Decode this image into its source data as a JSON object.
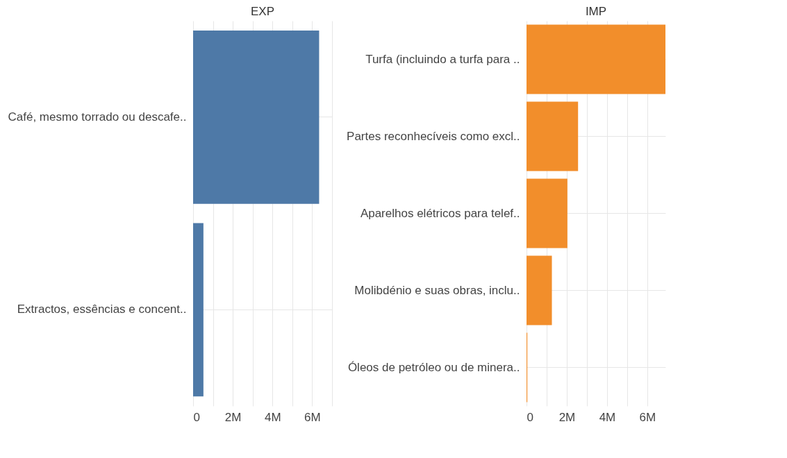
{
  "chart_data": [
    {
      "type": "bar",
      "orientation": "horizontal",
      "title": "EXP",
      "categories": [
        "Café, mesmo torrado ou descafe..",
        "Extractos, essências e concent.."
      ],
      "values": [
        6350000,
        520000
      ],
      "color": "#4e79a7",
      "xlim": [
        0,
        7000000
      ],
      "xticks": [
        {
          "value": 0,
          "label": "0"
        },
        {
          "value": 1000000,
          "label": null
        },
        {
          "value": 2000000,
          "label": "2M"
        },
        {
          "value": 3000000,
          "label": null
        },
        {
          "value": 4000000,
          "label": "4M"
        },
        {
          "value": 5000000,
          "label": null
        },
        {
          "value": 6000000,
          "label": "6M"
        },
        {
          "value": 7000000,
          "label": null
        }
      ],
      "grid": true
    },
    {
      "type": "bar",
      "orientation": "horizontal",
      "title": "IMP",
      "categories": [
        "Turfa (incluindo a turfa para ..",
        "Partes reconhecíveis como excl..",
        "Aparelhos elétricos para telef..",
        "Molibdénio e suas obras, inclu..",
        "Óleos de petróleo ou de minera.."
      ],
      "values": [
        6900000,
        2560000,
        2030000,
        1260000,
        40000
      ],
      "color": "#f28e2b",
      "xlim": [
        0,
        6900000
      ],
      "xticks": [
        {
          "value": 0,
          "label": "0"
        },
        {
          "value": 1000000,
          "label": null
        },
        {
          "value": 2000000,
          "label": "2M"
        },
        {
          "value": 3000000,
          "label": null
        },
        {
          "value": 4000000,
          "label": "4M"
        },
        {
          "value": 5000000,
          "label": null
        },
        {
          "value": 6000000,
          "label": "6M"
        }
      ],
      "grid": true
    }
  ]
}
